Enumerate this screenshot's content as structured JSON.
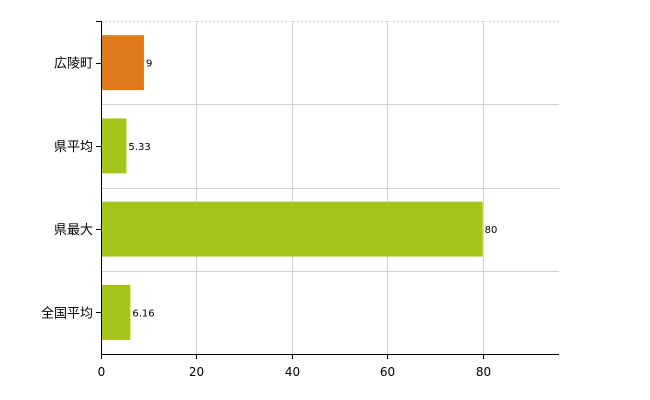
{
  "chart_data": {
    "type": "bar",
    "orientation": "horizontal",
    "categories": [
      "広陵町",
      "県平均",
      "県最大",
      "全国平均"
    ],
    "values": [
      9,
      5.33,
      80,
      6.16
    ],
    "value_labels": [
      "9",
      "5.33",
      "80",
      "6.16"
    ],
    "bar_colors": [
      "#e07a1f",
      "#a4c61a",
      "#a4c61a",
      "#a4c61a"
    ],
    "xlim": [
      0,
      96
    ],
    "xticks": [
      0,
      20,
      40,
      60,
      80
    ],
    "xtick_labels": [
      "0",
      "20",
      "40",
      "60",
      "80"
    ],
    "grid": true,
    "title": "",
    "xlabel": "",
    "ylabel": ""
  }
}
